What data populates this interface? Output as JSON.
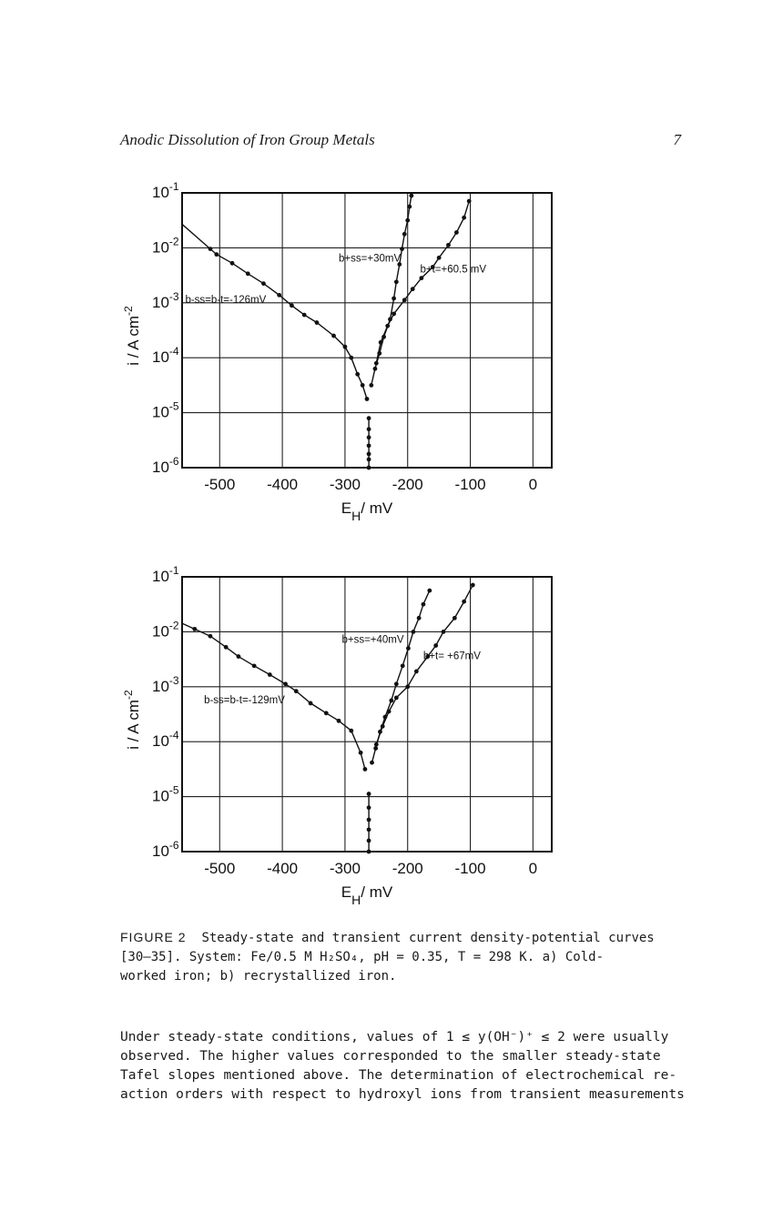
{
  "header": {
    "title": "Anodic Dissolution of Iron Group Metals",
    "page_number": "7"
  },
  "chart_data": [
    {
      "type": "line",
      "panel": "a",
      "xlabel": "E_H / mV",
      "ylabel": "i / A cm^-2",
      "xlim": [
        -560,
        30
      ],
      "y_log_exp_range": [
        -6,
        -1
      ],
      "x_ticks": [
        "-500",
        "-400",
        "-300",
        "-200",
        "-100",
        "0"
      ],
      "y_ticks": [
        "10-1",
        "10-2",
        "10-3",
        "10-4",
        "10-5",
        "10-6"
      ],
      "grid": true,
      "annotations": [
        {
          "text": "b+ss=+30mV",
          "x": -310,
          "logy": -2.25
        },
        {
          "text": "b+t=+60.5 mV",
          "x": -180,
          "logy": -2.45
        },
        {
          "text": "b-ss=b-t=-126mV",
          "x": -555,
          "logy": -3.0
        }
      ],
      "series": [
        {
          "kind": "cathodic",
          "points": [
            [
              -515,
              -2.02
            ],
            [
              -505,
              -2.12
            ],
            [
              -480,
              -2.28
            ],
            [
              -455,
              -2.47
            ],
            [
              -430,
              -2.65
            ],
            [
              -405,
              -2.86
            ],
            [
              -385,
              -3.05
            ],
            [
              -365,
              -3.22
            ],
            [
              -345,
              -3.36
            ],
            [
              -318,
              -3.6
            ],
            [
              -300,
              -3.8
            ],
            [
              -290,
              -4.0
            ],
            [
              -280,
              -4.3
            ],
            [
              -272,
              -4.5
            ],
            [
              -265,
              -4.75
            ]
          ]
        },
        {
          "kind": "corrosion",
          "points": [
            [
              -262,
              -5.1
            ],
            [
              -262,
              -5.3
            ],
            [
              -262,
              -5.45
            ],
            [
              -262,
              -5.6
            ],
            [
              -262,
              -5.75
            ],
            [
              -262,
              -5.85
            ],
            [
              -262,
              -6.0
            ]
          ]
        },
        {
          "kind": "anodic steady-state",
          "points": [
            [
              -258,
              -4.5
            ],
            [
              -252,
              -4.2
            ],
            [
              -245,
              -3.92
            ],
            [
              -238,
              -3.62
            ],
            [
              -228,
              -3.3
            ],
            [
              -222,
              -2.92
            ],
            [
              -218,
              -2.62
            ],
            [
              -213,
              -2.3
            ],
            [
              -209,
              -2.02
            ],
            [
              -205,
              -1.75
            ],
            [
              -200,
              -1.5
            ],
            [
              -197,
              -1.25
            ],
            [
              -194,
              -1.05
            ]
          ]
        },
        {
          "kind": "anodic transient",
          "points": [
            [
              -250,
              -4.1
            ],
            [
              -243,
              -3.72
            ],
            [
              -232,
              -3.42
            ],
            [
              -222,
              -3.2
            ],
            [
              -205,
              -2.95
            ],
            [
              -192,
              -2.75
            ],
            [
              -178,
              -2.55
            ],
            [
              -160,
              -2.35
            ],
            [
              -150,
              -2.18
            ],
            [
              -135,
              -1.95
            ],
            [
              -122,
              -1.72
            ],
            [
              -110,
              -1.45
            ],
            [
              -102,
              -1.15
            ]
          ]
        }
      ]
    },
    {
      "type": "line",
      "panel": "b",
      "xlabel": "E_H / mV",
      "ylabel": "i / A cm^-2",
      "xlim": [
        -560,
        30
      ],
      "y_log_exp_range": [
        -6,
        -1
      ],
      "x_ticks": [
        "-500",
        "-400",
        "-300",
        "-200",
        "-100",
        "0"
      ],
      "y_ticks": [
        "10-1",
        "10-2",
        "10-3",
        "10-4",
        "10-5",
        "10-6"
      ],
      "grid": true,
      "annotations": [
        {
          "text": "b+ss=+40mV",
          "x": -305,
          "logy": -2.2
        },
        {
          "text": "b+t= +67mV",
          "x": -175,
          "logy": -2.5
        },
        {
          "text": "b-ss=b-t=-129mV",
          "x": -525,
          "logy": -3.3
        }
      ],
      "series": [
        {
          "kind": "cathodic",
          "points": [
            [
              -540,
              -1.95
            ],
            [
              -515,
              -2.08
            ],
            [
              -490,
              -2.28
            ],
            [
              -470,
              -2.45
            ],
            [
              -445,
              -2.62
            ],
            [
              -420,
              -2.78
            ],
            [
              -395,
              -2.95
            ],
            [
              -378,
              -3.08
            ],
            [
              -355,
              -3.3
            ],
            [
              -330,
              -3.48
            ],
            [
              -310,
              -3.62
            ],
            [
              -290,
              -3.8
            ],
            [
              -275,
              -4.2
            ],
            [
              -268,
              -4.5
            ]
          ]
        },
        {
          "kind": "corrosion",
          "points": [
            [
              -262,
              -4.95
            ],
            [
              -262,
              -5.2
            ],
            [
              -262,
              -5.42
            ],
            [
              -262,
              -5.6
            ],
            [
              -262,
              -5.8
            ],
            [
              -262,
              -6.0
            ]
          ]
        },
        {
          "kind": "anodic steady-state",
          "points": [
            [
              -257,
              -4.38
            ],
            [
              -251,
              -4.12
            ],
            [
              -244,
              -3.82
            ],
            [
              -236,
              -3.55
            ],
            [
              -226,
              -3.25
            ],
            [
              -218,
              -2.95
            ],
            [
              -208,
              -2.62
            ],
            [
              -199,
              -2.3
            ],
            [
              -191,
              -2.0
            ],
            [
              -182,
              -1.75
            ],
            [
              -175,
              -1.5
            ],
            [
              -165,
              -1.25
            ]
          ]
        },
        {
          "kind": "anodic transient",
          "points": [
            [
              -250,
              -4.05
            ],
            [
              -240,
              -3.72
            ],
            [
              -230,
              -3.45
            ],
            [
              -218,
              -3.2
            ],
            [
              -200,
              -3.0
            ],
            [
              -186,
              -2.72
            ],
            [
              -168,
              -2.45
            ],
            [
              -155,
              -2.25
            ],
            [
              -143,
              -2.0
            ],
            [
              -125,
              -1.75
            ],
            [
              -110,
              -1.45
            ],
            [
              -96,
              -1.15
            ]
          ]
        }
      ]
    }
  ],
  "caption": {
    "label": "FIGURE 2",
    "lines": [
      "Steady-state and transient current density-potential curves",
      "[30–35].  System:  Fe/0.5 M H₂SO₄, pH = 0.35, T = 298 K.  a) Cold-",
      "worked iron; b) recrystallized iron."
    ]
  },
  "body": {
    "lines": [
      "Under steady-state conditions, values of 1 ≤ y(OH⁻)⁺ ≤ 2 were usually",
      "observed.  The higher values corresponded to the smaller steady-state",
      "Tafel slopes mentioned above.  The determination of electrochemical re-",
      "action orders with respect to hydroxyl ions from transient measurements"
    ]
  }
}
